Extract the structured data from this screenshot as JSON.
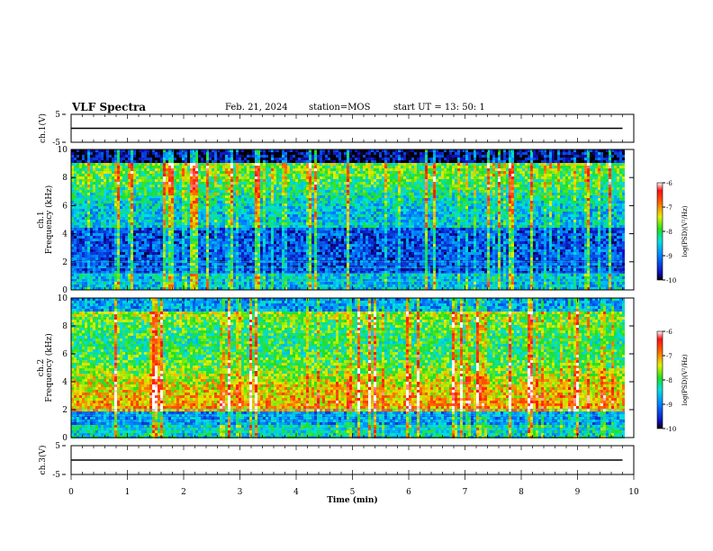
{
  "header": {
    "title": "VLF Spectra",
    "date": "Feb. 21, 2024",
    "station": "station=MOS",
    "start": "start  UT  =   13: 50: 1"
  },
  "chart_data": [
    {
      "type": "line",
      "title": "",
      "ylabel": "ch.1(V)",
      "xlim": [
        0,
        10
      ],
      "ylim": [
        -5,
        5
      ],
      "yticks": [
        "5",
        "-5"
      ],
      "series": [
        {
          "x": [
            0,
            9.8
          ],
          "values": [
            0,
            0
          ]
        }
      ]
    },
    {
      "type": "heatmap",
      "ylabel": "ch.1",
      "ylabel2": "Frequency (kHz)",
      "xlim": [
        0,
        10
      ],
      "ylim": [
        0,
        10
      ],
      "yticks": [
        "0",
        "2",
        "4",
        "6",
        "8",
        "10"
      ],
      "data_xmax": 9.8,
      "colorbar": {
        "label": "log(PSD)(V²/Hz)",
        "range": [
          -10,
          -6
        ],
        "ticks": [
          "-6",
          "-7",
          "-8",
          "-9",
          "-10"
        ]
      }
    },
    {
      "type": "heatmap",
      "ylabel": "ch.2",
      "ylabel2": "Frequency (kHz)",
      "xlim": [
        0,
        10
      ],
      "ylim": [
        0,
        10
      ],
      "yticks": [
        "0",
        "2",
        "4",
        "6",
        "8",
        "10"
      ],
      "data_xmax": 9.8,
      "colorbar": {
        "label": "log(PSD)(V²/Hz)",
        "range": [
          -10,
          -6
        ],
        "ticks": [
          "-6",
          "-7",
          "-8",
          "-9",
          "-10"
        ]
      }
    },
    {
      "type": "line",
      "ylabel": "ch.3(V)",
      "xlim": [
        0,
        10
      ],
      "ylim": [
        -5,
        5
      ],
      "yticks": [
        "5",
        "-5"
      ],
      "xlabel": "Time (min)",
      "xticks": [
        "0",
        "1",
        "2",
        "3",
        "4",
        "5",
        "6",
        "7",
        "8",
        "9",
        "10"
      ],
      "series": [
        {
          "x": [
            0,
            9.8
          ],
          "values": [
            0,
            0
          ]
        }
      ]
    }
  ]
}
